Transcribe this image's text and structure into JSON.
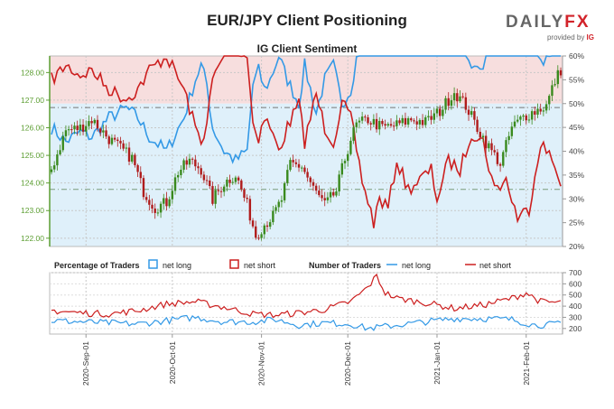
{
  "header": {
    "title": "EUR/JPY Client Positioning",
    "subtitle": "IG Client Sentiment",
    "logo_main_1": "DAILY",
    "logo_main_2": "FX",
    "logo_sub_1": "provided by",
    "logo_sub_2": "IG"
  },
  "legend": {
    "pct_title": "Percentage of Traders",
    "pct_long": "net long",
    "pct_short": "net short",
    "num_title": "Number of Traders",
    "num_long": "net long",
    "num_short": "net short"
  },
  "colors": {
    "long": "#3399e6",
    "short": "#cc1f1f",
    "candle_up": "#3a8a1e",
    "candle_down": "#b01c1c",
    "bg_short": "#f7dede",
    "bg_long": "#dff0fa",
    "price_axis": "#5c9e32",
    "pct_axis": "#444444"
  },
  "chart_data": [
    {
      "type": "line",
      "title": "IG Client Sentiment",
      "price_axis": {
        "ylim": [
          121.7,
          128.6
        ],
        "ticks": [
          "122.00",
          "123.00",
          "124.00",
          "125.00",
          "126.00",
          "127.00",
          "128.00"
        ],
        "tick_values": [
          122,
          123,
          124,
          125,
          126,
          127,
          128
        ]
      },
      "pct_axis": {
        "ylim": [
          20,
          60
        ],
        "ticks": [
          "20%",
          "25%",
          "30%",
          "35%",
          "40%",
          "45%",
          "50%",
          "55%",
          "60%"
        ],
        "tick_values": [
          20,
          25,
          30,
          35,
          40,
          45,
          50,
          55,
          60
        ]
      },
      "x_ticks": [
        "2020-Sep-01",
        "2020-Oct-01",
        "2020-Nov-01",
        "2020-Dec-01",
        "2021-Jan-01",
        "2021-Feb-01"
      ],
      "x_tick_index": [
        12,
        42,
        73,
        103,
        134,
        165
      ],
      "reference_lines": {
        "price_upper": 126.73,
        "price_lower": 123.77,
        "pct_mid": 50
      },
      "x_count": 178,
      "price_anchors": [
        [
          0,
          124.5
        ],
        [
          5,
          125.9
        ],
        [
          10,
          126.0
        ],
        [
          14,
          126.3
        ],
        [
          20,
          125.6
        ],
        [
          28,
          124.9
        ],
        [
          32,
          123.7
        ],
        [
          36,
          123.1
        ],
        [
          40,
          123.3
        ],
        [
          44,
          124.4
        ],
        [
          48,
          124.8
        ],
        [
          52,
          124.5
        ],
        [
          56,
          123.4
        ],
        [
          60,
          124.0
        ],
        [
          64,
          124.3
        ],
        [
          68,
          123.2
        ],
        [
          71,
          122.1
        ],
        [
          74,
          122.5
        ],
        [
          77,
          122.8
        ],
        [
          80,
          123.4
        ],
        [
          83,
          124.7
        ],
        [
          87,
          124.6
        ],
        [
          91,
          123.8
        ],
        [
          95,
          123.2
        ],
        [
          99,
          123.7
        ],
        [
          101,
          124.5
        ],
        [
          104,
          125.6
        ],
        [
          106,
          126.1
        ],
        [
          110,
          126.3
        ],
        [
          115,
          126.0
        ],
        [
          120,
          126.1
        ],
        [
          125,
          126.3
        ],
        [
          130,
          126.2
        ],
        [
          135,
          126.6
        ],
        [
          140,
          127.3
        ],
        [
          144,
          126.8
        ],
        [
          148,
          126.0
        ],
        [
          152,
          125.3
        ],
        [
          156,
          124.7
        ],
        [
          160,
          126.0
        ],
        [
          164,
          126.4
        ],
        [
          168,
          126.6
        ],
        [
          172,
          126.8
        ],
        [
          175,
          127.7
        ],
        [
          177,
          128.1
        ]
      ],
      "series": [
        {
          "name": "net long",
          "anchors": [
            [
              0,
              45
            ],
            [
              5,
              42
            ],
            [
              10,
              44
            ],
            [
              14,
              43
            ],
            [
              20,
              47
            ],
            [
              26,
              49
            ],
            [
              30,
              47
            ],
            [
              34,
              43
            ],
            [
              40,
              40
            ],
            [
              46,
              47
            ],
            [
              50,
              55
            ],
            [
              52,
              58
            ],
            [
              54,
              54
            ],
            [
              56,
              45
            ],
            [
              60,
              40
            ],
            [
              64,
              38
            ],
            [
              68,
              40
            ],
            [
              70,
              54
            ],
            [
              72,
              57
            ],
            [
              74,
              53
            ],
            [
              76,
              55
            ],
            [
              79,
              60
            ],
            [
              82,
              55
            ],
            [
              86,
              50
            ],
            [
              88,
              58
            ],
            [
              92,
              48
            ],
            [
              95,
              55
            ],
            [
              98,
              58
            ],
            [
              101,
              50
            ],
            [
              104,
              53
            ],
            [
              108,
              66
            ],
            [
              112,
              75
            ],
            [
              114,
              70
            ],
            [
              117,
              72
            ],
            [
              120,
              62
            ],
            [
              124,
              68
            ],
            [
              128,
              66
            ],
            [
              132,
              64
            ],
            [
              134,
              70
            ],
            [
              138,
              62
            ],
            [
              142,
              64
            ],
            [
              146,
              56
            ],
            [
              150,
              58
            ],
            [
              154,
              68
            ],
            [
              158,
              66
            ],
            [
              162,
              74
            ],
            [
              166,
              72
            ],
            [
              170,
              58
            ],
            [
              174,
              62
            ],
            [
              177,
              66
            ]
          ]
        },
        {
          "name": "net short",
          "anchors": [
            [
              0,
              55
            ],
            [
              5,
              58
            ],
            [
              10,
              56
            ],
            [
              14,
              57
            ],
            [
              20,
              53
            ],
            [
              26,
              51
            ],
            [
              30,
              53
            ],
            [
              34,
              57
            ],
            [
              40,
              60
            ],
            [
              46,
              53
            ],
            [
              50,
              45
            ],
            [
              52,
              42
            ],
            [
              54,
              46
            ],
            [
              56,
              55
            ],
            [
              60,
              60
            ],
            [
              64,
              62
            ],
            [
              68,
              60
            ],
            [
              70,
              46
            ],
            [
              72,
              43
            ],
            [
              74,
              47
            ],
            [
              76,
              45
            ],
            [
              79,
              40
            ],
            [
              82,
              45
            ],
            [
              86,
              50
            ],
            [
              88,
              42
            ],
            [
              92,
              52
            ],
            [
              95,
              45
            ],
            [
              98,
              42
            ],
            [
              101,
              50
            ],
            [
              104,
              47
            ],
            [
              108,
              34
            ],
            [
              112,
              25
            ],
            [
              114,
              30
            ],
            [
              117,
              28
            ],
            [
              120,
              38
            ],
            [
              124,
              32
            ],
            [
              128,
              34
            ],
            [
              132,
              36
            ],
            [
              134,
              30
            ],
            [
              138,
              38
            ],
            [
              142,
              36
            ],
            [
              146,
              44
            ],
            [
              150,
              42
            ],
            [
              154,
              32
            ],
            [
              158,
              34
            ],
            [
              162,
              26
            ],
            [
              166,
              28
            ],
            [
              170,
              42
            ],
            [
              174,
              38
            ],
            [
              177,
              34
            ]
          ]
        }
      ]
    },
    {
      "type": "line",
      "title": "Number of Traders",
      "ylim": [
        150,
        700
      ],
      "ticks": [
        "200",
        "300",
        "400",
        "500",
        "600",
        "700"
      ],
      "tick_values": [
        200,
        300,
        400,
        500,
        600,
        700
      ],
      "series": [
        {
          "name": "net long",
          "anchors": [
            [
              0,
              270
            ],
            [
              10,
              260
            ],
            [
              20,
              250
            ],
            [
              30,
              240
            ],
            [
              40,
              270
            ],
            [
              50,
              300
            ],
            [
              60,
              260
            ],
            [
              70,
              260
            ],
            [
              78,
              280
            ],
            [
              86,
              230
            ],
            [
              95,
              250
            ],
            [
              104,
              240
            ],
            [
              110,
              200
            ],
            [
              120,
              230
            ],
            [
              130,
              260
            ],
            [
              140,
              290
            ],
            [
              150,
              290
            ],
            [
              160,
              280
            ],
            [
              168,
              230
            ],
            [
              177,
              240
            ]
          ]
        },
        {
          "name": "net short",
          "anchors": [
            [
              0,
              360
            ],
            [
              10,
              340
            ],
            [
              20,
              330
            ],
            [
              30,
              360
            ],
            [
              40,
              420
            ],
            [
              50,
              440
            ],
            [
              60,
              390
            ],
            [
              70,
              330
            ],
            [
              78,
              320
            ],
            [
              86,
              340
            ],
            [
              95,
              370
            ],
            [
              104,
              440
            ],
            [
              110,
              570
            ],
            [
              113,
              670
            ],
            [
              116,
              520
            ],
            [
              120,
              470
            ],
            [
              130,
              430
            ],
            [
              140,
              380
            ],
            [
              150,
              410
            ],
            [
              160,
              470
            ],
            [
              165,
              520
            ],
            [
              170,
              440
            ],
            [
              177,
              430
            ]
          ]
        }
      ]
    }
  ]
}
